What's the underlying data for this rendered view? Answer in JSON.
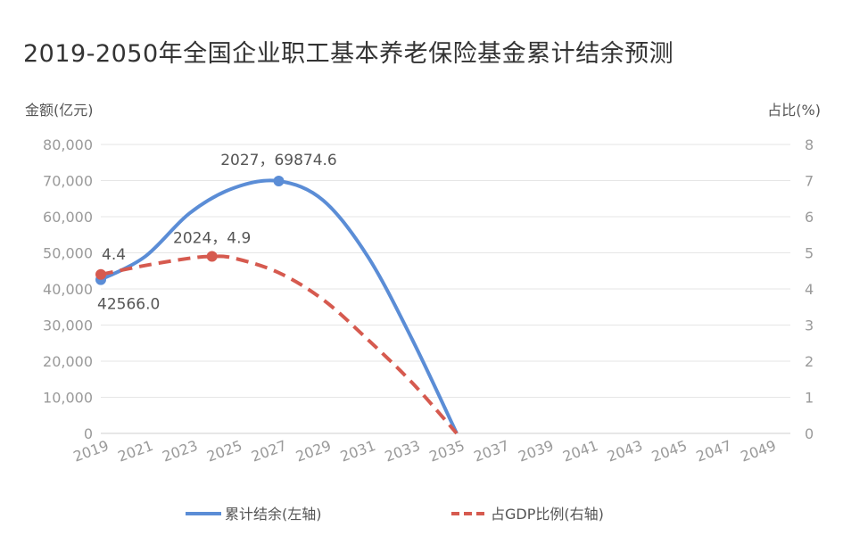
{
  "title": "2019-2050年全国企业职工基本养老保险基金累计结余预测",
  "chart_data": {
    "type": "line",
    "left_axis_label": "金额(亿元)",
    "right_axis_label": "占比(%)",
    "ylim_left": [
      0,
      80000
    ],
    "ylim_right": [
      0,
      8
    ],
    "y_ticks_left": [
      "80,000",
      "70,000",
      "60,000",
      "50,000",
      "40,000",
      "30,000",
      "20,000",
      "10,000",
      "0"
    ],
    "y_ticks_right": [
      "8",
      "7",
      "6",
      "5",
      "4",
      "3",
      "2",
      "1",
      "0"
    ],
    "x_ticks": [
      "2019",
      "2021",
      "2023",
      "2025",
      "2027",
      "2029",
      "2031",
      "2033",
      "2035",
      "2037",
      "2039",
      "2041",
      "2043",
      "2045",
      "2047",
      "2049"
    ],
    "xlim": [
      2019,
      2050
    ],
    "grid": true,
    "legend_position": "bottom",
    "series": [
      {
        "name": "累计结余(左轴)",
        "axis": "left",
        "color": "#5b8dd6",
        "style": "solid",
        "x": [
          2019,
          2021,
          2023,
          2025,
          2027,
          2029,
          2031,
          2033,
          2035
        ],
        "values": [
          42566.0,
          49000,
          61000,
          68000,
          69874.6,
          64500,
          49000,
          26000,
          0
        ],
        "labels": [
          {
            "x": 2019,
            "text": "42566.0"
          },
          {
            "x": 2027,
            "text": "2027，69874.6"
          }
        ]
      },
      {
        "name": "占GDP比例(右轴)",
        "axis": "right",
        "color": "#d65a4f",
        "style": "dashed",
        "x": [
          2019,
          2021,
          2023,
          2024,
          2025,
          2027,
          2029,
          2031,
          2033,
          2035
        ],
        "values": [
          4.4,
          4.65,
          4.85,
          4.9,
          4.85,
          4.45,
          3.7,
          2.6,
          1.4,
          0
        ],
        "labels": [
          {
            "x": 2019,
            "text": "4.4"
          },
          {
            "x": 2024,
            "text": "2024，4.9"
          }
        ]
      }
    ]
  }
}
